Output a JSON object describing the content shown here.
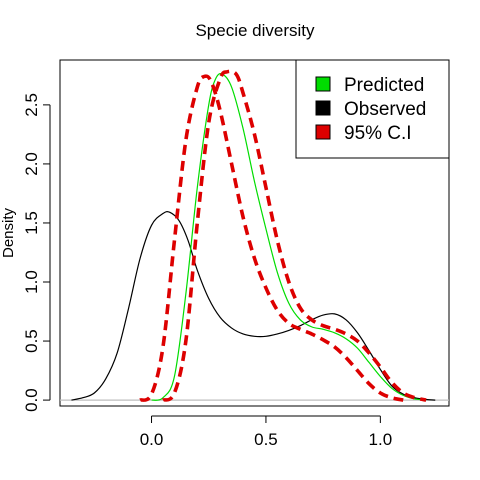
{
  "chart_data": {
    "type": "line",
    "title": "Specie diversity",
    "xlabel": "",
    "ylabel": "Density",
    "xlim": [
      -0.4,
      1.3
    ],
    "ylim": [
      -0.05,
      2.88
    ],
    "x_ticks": [
      0.0,
      0.5,
      1.0
    ],
    "x_tick_labels": [
      "0.0",
      "0.5",
      "1.0"
    ],
    "y_ticks": [
      0.0,
      0.5,
      1.0,
      1.5,
      2.0,
      2.5
    ],
    "y_tick_labels": [
      "0.0",
      "0.5",
      "1.0",
      "1.5",
      "2.0",
      "2.5"
    ],
    "grid": false,
    "legend_position": "top-right",
    "baseline_y": 0,
    "series": [
      {
        "name": "Observed",
        "color": "#000000",
        "style": "solid",
        "x": [
          -0.35,
          -0.3,
          -0.25,
          -0.2,
          -0.15,
          -0.1,
          -0.05,
          0.0,
          0.05,
          0.08,
          0.12,
          0.16,
          0.2,
          0.25,
          0.3,
          0.35,
          0.4,
          0.45,
          0.5,
          0.55,
          0.6,
          0.65,
          0.7,
          0.75,
          0.8,
          0.85,
          0.9,
          0.95,
          1.0,
          1.05,
          1.1,
          1.15,
          1.2,
          1.24
        ],
        "y": [
          0.0,
          0.02,
          0.06,
          0.18,
          0.4,
          0.78,
          1.2,
          1.48,
          1.58,
          1.59,
          1.52,
          1.35,
          1.1,
          0.86,
          0.7,
          0.61,
          0.56,
          0.54,
          0.54,
          0.56,
          0.59,
          0.63,
          0.68,
          0.72,
          0.73,
          0.68,
          0.57,
          0.42,
          0.26,
          0.12,
          0.05,
          0.02,
          0.005,
          0.0
        ]
      },
      {
        "name": "Predicted",
        "color": "#00dd00",
        "style": "solid",
        "x": [
          0.0,
          0.05,
          0.1,
          0.15,
          0.2,
          0.25,
          0.28,
          0.31,
          0.35,
          0.4,
          0.45,
          0.5,
          0.55,
          0.6,
          0.65,
          0.7,
          0.75,
          0.8,
          0.85,
          0.9,
          0.95,
          1.0,
          1.05,
          1.1,
          1.15,
          1.2
        ],
        "y": [
          0.0,
          0.02,
          0.2,
          0.9,
          1.8,
          2.5,
          2.72,
          2.76,
          2.65,
          2.3,
          1.85,
          1.45,
          1.08,
          0.82,
          0.68,
          0.62,
          0.6,
          0.57,
          0.52,
          0.44,
          0.32,
          0.2,
          0.1,
          0.04,
          0.01,
          0.0
        ]
      },
      {
        "name": "95% C.I",
        "color": "#dd0000",
        "style": "dashed",
        "x": [
          -0.05,
          0.0,
          0.05,
          0.1,
          0.15,
          0.2,
          0.23,
          0.26,
          0.3,
          0.35,
          0.4,
          0.45,
          0.5,
          0.55,
          0.6,
          0.65,
          0.7,
          0.75,
          0.8,
          0.85,
          0.9,
          0.95,
          1.0,
          1.05,
          1.1
        ],
        "y": [
          0.0,
          0.05,
          0.45,
          1.35,
          2.2,
          2.65,
          2.74,
          2.7,
          2.45,
          2.0,
          1.55,
          1.2,
          0.95,
          0.76,
          0.65,
          0.6,
          0.56,
          0.51,
          0.45,
          0.36,
          0.25,
          0.14,
          0.06,
          0.02,
          0.0
        ]
      },
      {
        "name": "95% C.I",
        "color": "#dd0000",
        "style": "dashed",
        "x": [
          0.05,
          0.1,
          0.15,
          0.2,
          0.25,
          0.3,
          0.33,
          0.37,
          0.4,
          0.45,
          0.5,
          0.55,
          0.6,
          0.65,
          0.7,
          0.75,
          0.8,
          0.85,
          0.9,
          0.95,
          1.0,
          1.05,
          1.1,
          1.15,
          1.2
        ],
        "y": [
          0.0,
          0.06,
          0.5,
          1.5,
          2.35,
          2.72,
          2.78,
          2.76,
          2.6,
          2.25,
          1.8,
          1.35,
          1.0,
          0.78,
          0.68,
          0.63,
          0.6,
          0.56,
          0.5,
          0.4,
          0.28,
          0.15,
          0.06,
          0.02,
          0.0
        ]
      }
    ],
    "legend": [
      {
        "label": "Predicted",
        "color": "#00dd00"
      },
      {
        "label": "Observed",
        "color": "#000000"
      },
      {
        "label": "95% C.I",
        "color": "#dd0000"
      }
    ]
  }
}
